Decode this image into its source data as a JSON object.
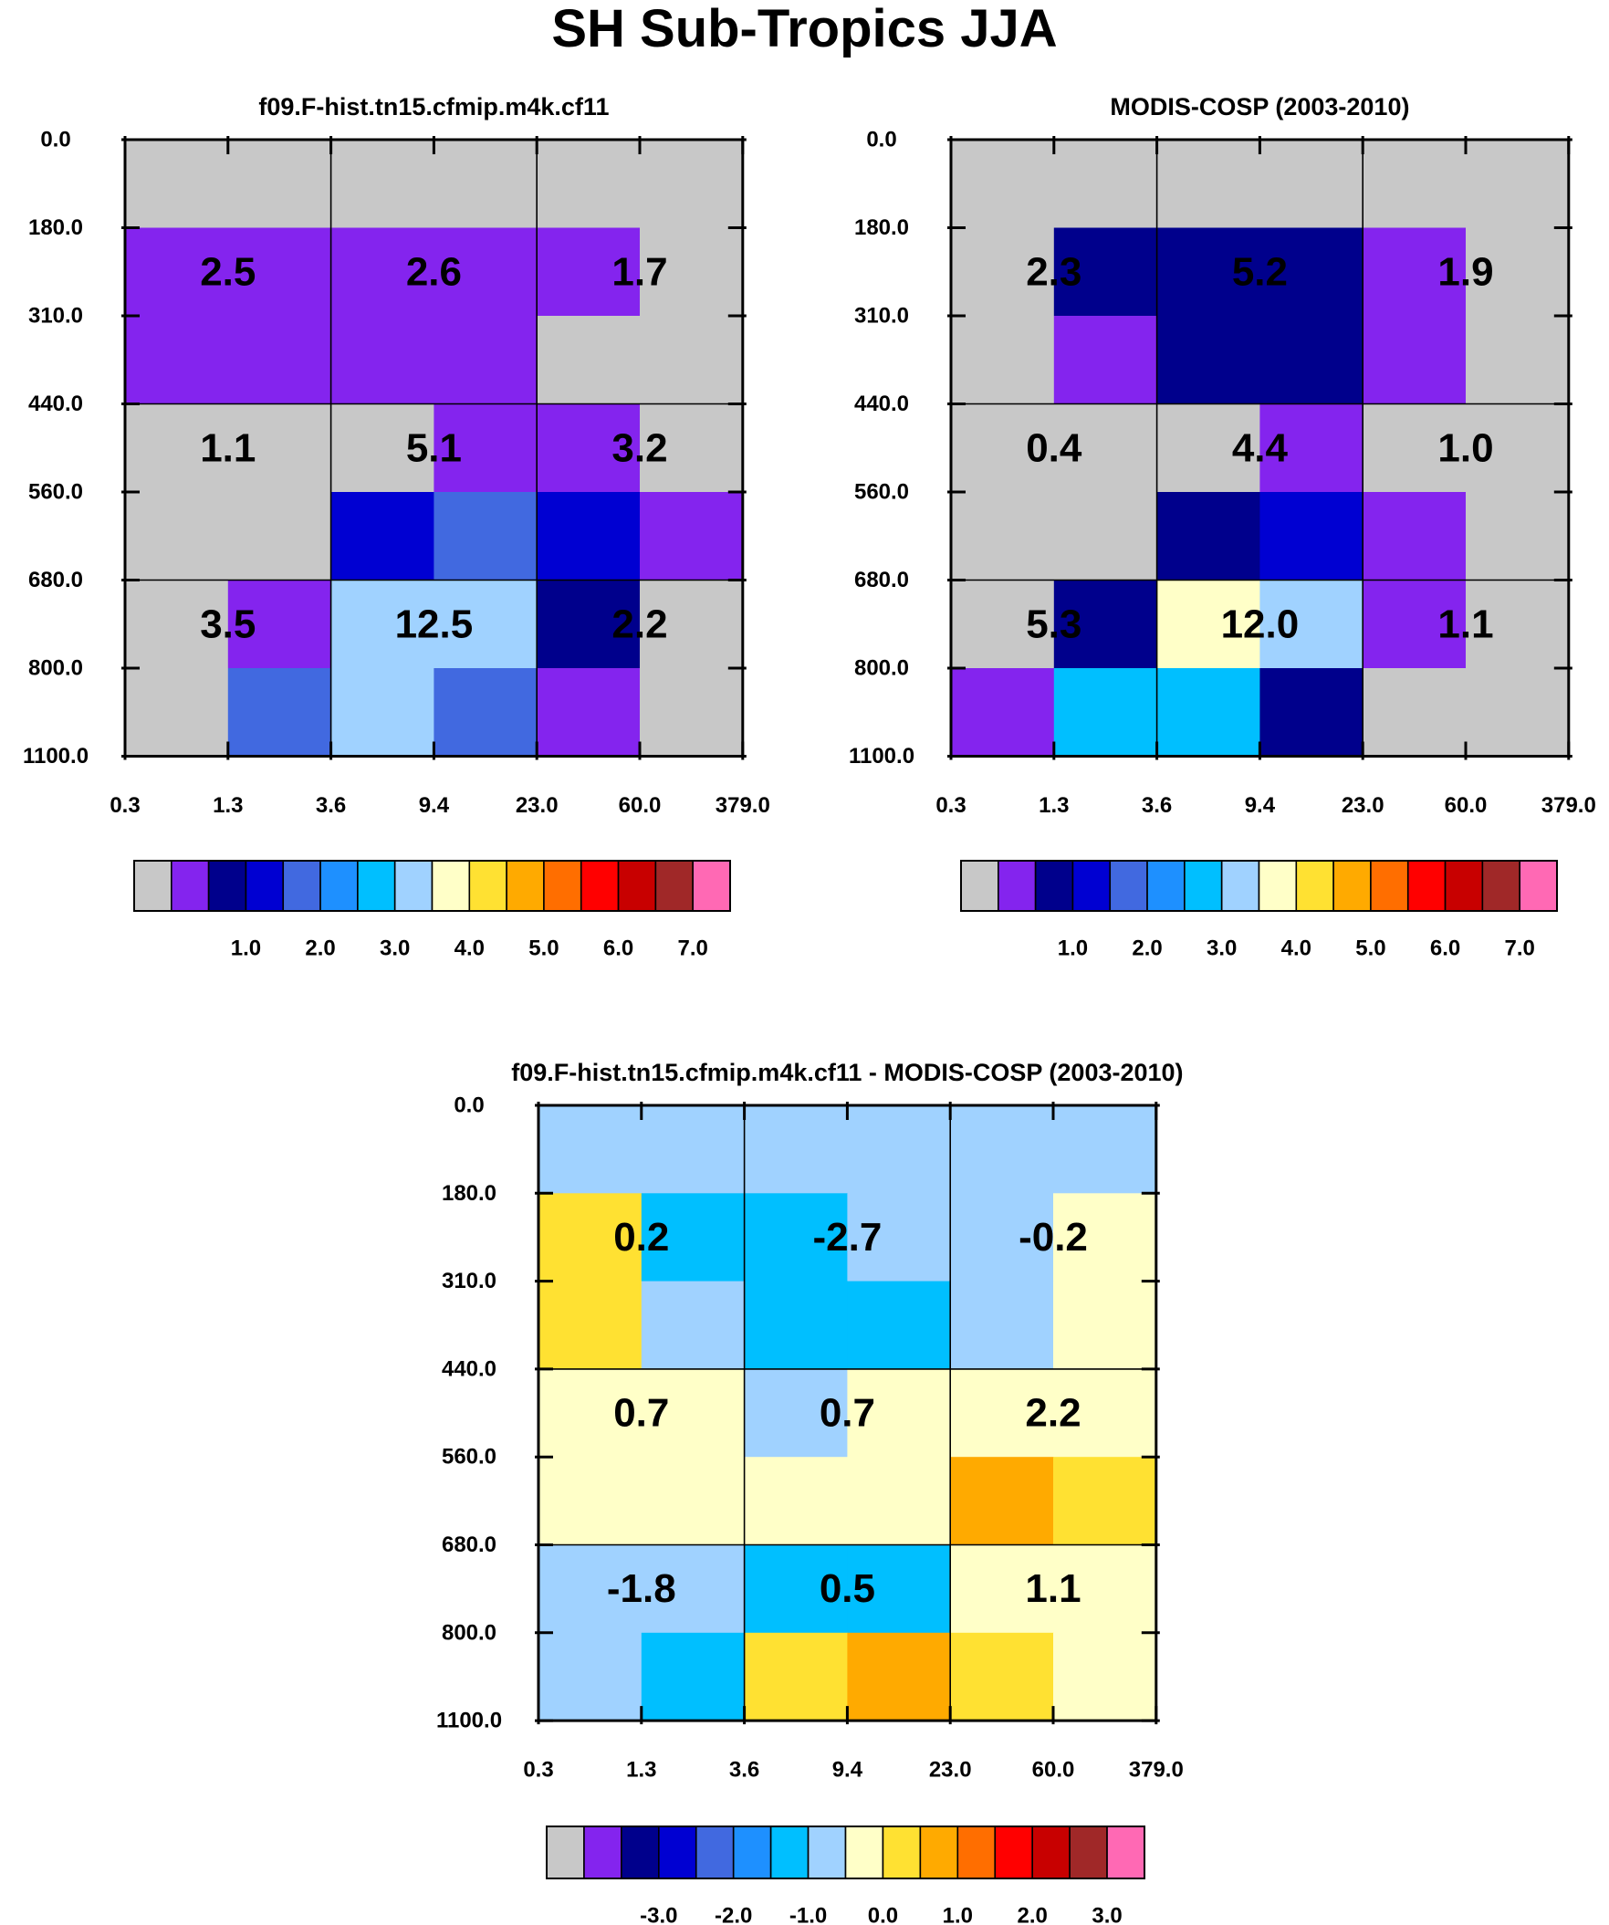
{
  "title": "SH Sub-Tropics JJA",
  "colors": {
    "palette": [
      "#c8c8c8",
      "#8424ee",
      "#00008c",
      "#0000d2",
      "#4169e0",
      "#1e90ff",
      "#00bfff",
      "#a0d2ff",
      "#ffffc8",
      "#ffe132",
      "#ffaa00",
      "#ff6e00",
      "#ff0000",
      "#c80000",
      "#a02828",
      "#ff69b4"
    ],
    "grid": "#000000"
  },
  "chart_data": [
    {
      "type": "heatmap",
      "title": "f09.F-hist.tn15.cfmip.m4k.cf11",
      "x_edges": [
        "0.3",
        "1.3",
        "3.6",
        "9.4",
        "23.0",
        "60.0",
        "379.0"
      ],
      "y_edges": [
        "0.0",
        "180.0",
        "310.0",
        "440.0",
        "560.0",
        "680.0",
        "800.0",
        "1100.0"
      ],
      "cells": [
        [
          0,
          0,
          0,
          0,
          0,
          0
        ],
        [
          1,
          1,
          1,
          1,
          1,
          0
        ],
        [
          1,
          1,
          1,
          1,
          0,
          0
        ],
        [
          0,
          0,
          0,
          1,
          1,
          0
        ],
        [
          0,
          0,
          3,
          4,
          3,
          1
        ],
        [
          0,
          1,
          7,
          7,
          2,
          0
        ],
        [
          0,
          4,
          7,
          4,
          1,
          0
        ]
      ],
      "annotations": [
        {
          "text": "2.5",
          "row": 1,
          "col": 0
        },
        {
          "text": "2.6",
          "row": 1,
          "col": 1
        },
        {
          "text": "1.7",
          "row": 1,
          "col": 2
        },
        {
          "text": "1.1",
          "row": 2,
          "col": 0
        },
        {
          "text": "5.1",
          "row": 2,
          "col": 1
        },
        {
          "text": "3.2",
          "row": 2,
          "col": 2
        },
        {
          "text": "3.5",
          "row": 3,
          "col": 0
        },
        {
          "text": "12.5",
          "row": 3,
          "col": 1
        },
        {
          "text": "2.2",
          "row": 3,
          "col": 2
        }
      ],
      "colorbar_labels": [
        "1.0",
        "2.0",
        "3.0",
        "4.0",
        "5.0",
        "6.0",
        "7.0"
      ]
    },
    {
      "type": "heatmap",
      "title": "MODIS-COSP (2003-2010)",
      "x_edges": [
        "0.3",
        "1.3",
        "3.6",
        "9.4",
        "23.0",
        "60.0",
        "379.0"
      ],
      "y_edges": [
        "0.0",
        "180.0",
        "310.0",
        "440.0",
        "560.0",
        "680.0",
        "800.0",
        "1100.0"
      ],
      "cells": [
        [
          0,
          0,
          0,
          0,
          0,
          0
        ],
        [
          0,
          2,
          2,
          2,
          1,
          0
        ],
        [
          0,
          1,
          2,
          2,
          1,
          0
        ],
        [
          0,
          0,
          0,
          1,
          0,
          0
        ],
        [
          0,
          0,
          2,
          3,
          1,
          0
        ],
        [
          0,
          2,
          8,
          7,
          1,
          0
        ],
        [
          1,
          6,
          6,
          2,
          0,
          0
        ]
      ],
      "annotations": [
        {
          "text": "2.3",
          "row": 1,
          "col": 0
        },
        {
          "text": "5.2",
          "row": 1,
          "col": 1
        },
        {
          "text": "1.9",
          "row": 1,
          "col": 2
        },
        {
          "text": "0.4",
          "row": 2,
          "col": 0
        },
        {
          "text": "4.4",
          "row": 2,
          "col": 1
        },
        {
          "text": "1.0",
          "row": 2,
          "col": 2
        },
        {
          "text": "5.3",
          "row": 3,
          "col": 0
        },
        {
          "text": "12.0",
          "row": 3,
          "col": 1
        },
        {
          "text": "1.1",
          "row": 3,
          "col": 2
        }
      ],
      "colorbar_labels": [
        "1.0",
        "2.0",
        "3.0",
        "4.0",
        "5.0",
        "6.0",
        "7.0"
      ]
    },
    {
      "type": "heatmap",
      "title": "f09.F-hist.tn15.cfmip.m4k.cf11 - MODIS-COSP (2003-2010)",
      "x_edges": [
        "0.3",
        "1.3",
        "3.6",
        "9.4",
        "23.0",
        "60.0",
        "379.0"
      ],
      "y_edges": [
        "0.0",
        "180.0",
        "310.0",
        "440.0",
        "560.0",
        "680.0",
        "800.0",
        "1100.0"
      ],
      "cells": [
        [
          7,
          7,
          7,
          7,
          7,
          7
        ],
        [
          9,
          6,
          6,
          7,
          7,
          8
        ],
        [
          9,
          7,
          6,
          6,
          7,
          8
        ],
        [
          8,
          8,
          7,
          8,
          8,
          8
        ],
        [
          8,
          8,
          8,
          8,
          10,
          9
        ],
        [
          7,
          7,
          6,
          6,
          8,
          8
        ],
        [
          7,
          6,
          9,
          10,
          9,
          8
        ]
      ],
      "annotations": [
        {
          "text": "0.2",
          "row": 1,
          "col": 0
        },
        {
          "text": "-2.7",
          "row": 1,
          "col": 1
        },
        {
          "text": "-0.2",
          "row": 1,
          "col": 2
        },
        {
          "text": "0.7",
          "row": 2,
          "col": 0
        },
        {
          "text": "0.7",
          "row": 2,
          "col": 1
        },
        {
          "text": "2.2",
          "row": 2,
          "col": 2
        },
        {
          "text": "-1.8",
          "row": 3,
          "col": 0
        },
        {
          "text": "0.5",
          "row": 3,
          "col": 1
        },
        {
          "text": "1.1",
          "row": 3,
          "col": 2
        }
      ],
      "colorbar_labels": [
        "-3.0",
        "-2.0",
        "-1.0",
        "0.0",
        "1.0",
        "2.0",
        "3.0"
      ]
    }
  ]
}
